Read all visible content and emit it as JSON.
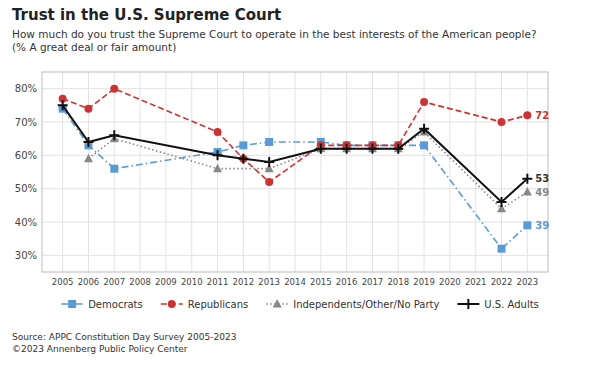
{
  "chart_data": {
    "type": "line",
    "title": "Trust in the U.S. Supreme Court",
    "subtitle": "How much do you trust the Supreme Court to operate in the best interests of the American people?\n(% A great deal or fair amount)",
    "source": "Source: APPC Constitution Day Survey 2005-2023\n©2023 Annenberg Public Policy Center",
    "series": [
      {
        "name": "Democrats",
        "color": "#5b9bd5",
        "marker": "square",
        "line_style": "dashdot",
        "x": [
          2005,
          2006,
          2007,
          2011,
          2012,
          2013,
          2015,
          2016,
          2017,
          2018,
          2019,
          2022,
          2023
        ],
        "values": [
          74,
          63,
          56,
          61,
          63,
          64,
          64,
          63,
          63,
          63,
          63,
          32,
          39
        ]
      },
      {
        "name": "Republicans",
        "color": "#cc3333",
        "marker": "circle",
        "line_style": "dashed",
        "x": [
          2005,
          2006,
          2007,
          2011,
          2012,
          2013,
          2015,
          2016,
          2017,
          2018,
          2019,
          2022,
          2023
        ],
        "values": [
          77,
          74,
          80,
          67,
          59,
          52,
          63,
          63,
          63,
          63,
          76,
          70,
          72
        ]
      },
      {
        "name": "Independents/Other/No Party",
        "color": "#888888",
        "marker": "triangle",
        "line_style": "dotted",
        "x": [
          2006,
          2007,
          2011,
          2013,
          2015,
          2016,
          2017,
          2018,
          2019,
          2022,
          2023
        ],
        "values": [
          59,
          65,
          56,
          56,
          62,
          62,
          62,
          62,
          67,
          44,
          49
        ]
      },
      {
        "name": "U.S. Adults",
        "color": "#111111",
        "marker": "plus",
        "line_style": "solid",
        "x": [
          2005,
          2006,
          2007,
          2011,
          2012,
          2013,
          2015,
          2016,
          2017,
          2018,
          2019,
          2022,
          2023
        ],
        "values": [
          75,
          64,
          66,
          60,
          59,
          58,
          62,
          62,
          62,
          62,
          68,
          46,
          53
        ]
      }
    ],
    "annotations": [
      {
        "text": "72",
        "x": 2023,
        "y": 72,
        "color": "#cc3333"
      },
      {
        "text": "53",
        "x": 2023,
        "y": 53,
        "color": "#333333"
      },
      {
        "text": "49",
        "x": 2023,
        "y": 49,
        "color": "#888888"
      },
      {
        "text": "39",
        "x": 2023,
        "y": 39,
        "color": "#5b9bd5"
      }
    ],
    "xlim": [
      2004.2,
      2023.8
    ],
    "xticks": [
      2005,
      2006,
      2007,
      2008,
      2009,
      2010,
      2011,
      2012,
      2013,
      2014,
      2015,
      2016,
      2017,
      2018,
      2019,
      2020,
      2021,
      2022,
      2023
    ],
    "ylim": [
      25,
      85
    ],
    "yticks": [
      {
        "value": 30,
        "label": "30%"
      },
      {
        "value": 40,
        "label": "40%"
      },
      {
        "value": 50,
        "label": "50%"
      },
      {
        "value": 60,
        "label": "60%"
      },
      {
        "value": 70,
        "label": "70%"
      },
      {
        "value": 80,
        "label": "80%"
      }
    ],
    "grid": true,
    "legend": "bottom"
  }
}
